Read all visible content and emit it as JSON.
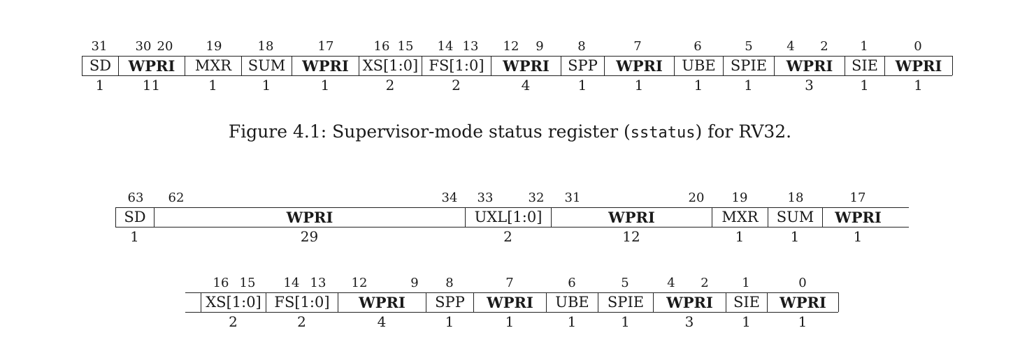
{
  "figure_caption": {
    "prefix": "Figure 4.1: Supervisor-mode status register (",
    "register": "sstatus",
    "suffix": ") for RV32."
  },
  "rv32": {
    "fields": [
      {
        "name": "SD",
        "bold": false,
        "width": "1",
        "bits": [
          "31"
        ]
      },
      {
        "name": "WPRI",
        "bold": true,
        "width": "11",
        "bits": [
          "30",
          "20"
        ]
      },
      {
        "name": "MXR",
        "bold": false,
        "width": "1",
        "bits": [
          "19"
        ]
      },
      {
        "name": "SUM",
        "bold": false,
        "width": "1",
        "bits": [
          "18"
        ]
      },
      {
        "name": "WPRI",
        "bold": true,
        "width": "1",
        "bits": [
          "17"
        ]
      },
      {
        "name": "XS[1:0]",
        "bold": false,
        "width": "2",
        "bits": [
          "16",
          "15"
        ]
      },
      {
        "name": "FS[1:0]",
        "bold": false,
        "width": "2",
        "bits": [
          "14",
          "13"
        ]
      },
      {
        "name": "WPRI",
        "bold": true,
        "width": "4",
        "bits": [
          "12",
          "9"
        ]
      },
      {
        "name": "SPP",
        "bold": false,
        "width": "1",
        "bits": [
          "8"
        ]
      },
      {
        "name": "WPRI",
        "bold": true,
        "width": "1",
        "bits": [
          "7"
        ]
      },
      {
        "name": "UBE",
        "bold": false,
        "width": "1",
        "bits": [
          "6"
        ]
      },
      {
        "name": "SPIE",
        "bold": false,
        "width": "1",
        "bits": [
          "5"
        ]
      },
      {
        "name": "WPRI",
        "bold": true,
        "width": "3",
        "bits": [
          "4",
          "2"
        ]
      },
      {
        "name": "SIE",
        "bold": false,
        "width": "1",
        "bits": [
          "1"
        ]
      },
      {
        "name": "WPRI",
        "bold": true,
        "width": "1",
        "bits": [
          "0"
        ]
      }
    ]
  },
  "rv64_upper": {
    "fields": [
      {
        "name": "SD",
        "bold": false,
        "width": "1",
        "bits": [
          "63"
        ]
      },
      {
        "name": "WPRI",
        "bold": true,
        "width": "29",
        "bits": [
          "62",
          "34"
        ]
      },
      {
        "name": "UXL[1:0]",
        "bold": false,
        "width": "2",
        "bits": [
          "33",
          "32"
        ]
      },
      {
        "name": "WPRI",
        "bold": true,
        "width": "12",
        "bits": [
          "31",
          "20"
        ]
      },
      {
        "name": "MXR",
        "bold": false,
        "width": "1",
        "bits": [
          "19"
        ]
      },
      {
        "name": "SUM",
        "bold": false,
        "width": "1",
        "bits": [
          "18"
        ]
      },
      {
        "name": "WPRI",
        "bold": true,
        "width": "1",
        "bits": [
          "17"
        ]
      }
    ]
  },
  "rv64_lower": {
    "fields": [
      {
        "name": "XS[1:0]",
        "bold": false,
        "width": "2",
        "bits": [
          "16",
          "15"
        ]
      },
      {
        "name": "FS[1:0]",
        "bold": false,
        "width": "2",
        "bits": [
          "14",
          "13"
        ]
      },
      {
        "name": "WPRI",
        "bold": true,
        "width": "4",
        "bits": [
          "12",
          "9"
        ]
      },
      {
        "name": "SPP",
        "bold": false,
        "width": "1",
        "bits": [
          "8"
        ]
      },
      {
        "name": "WPRI",
        "bold": true,
        "width": "1",
        "bits": [
          "7"
        ]
      },
      {
        "name": "UBE",
        "bold": false,
        "width": "1",
        "bits": [
          "6"
        ]
      },
      {
        "name": "SPIE",
        "bold": false,
        "width": "1",
        "bits": [
          "5"
        ]
      },
      {
        "name": "WPRI",
        "bold": true,
        "width": "3",
        "bits": [
          "4",
          "2"
        ]
      },
      {
        "name": "SIE",
        "bold": false,
        "width": "1",
        "bits": [
          "1"
        ]
      },
      {
        "name": "WPRI",
        "bold": true,
        "width": "1",
        "bits": [
          "0"
        ]
      }
    ]
  }
}
